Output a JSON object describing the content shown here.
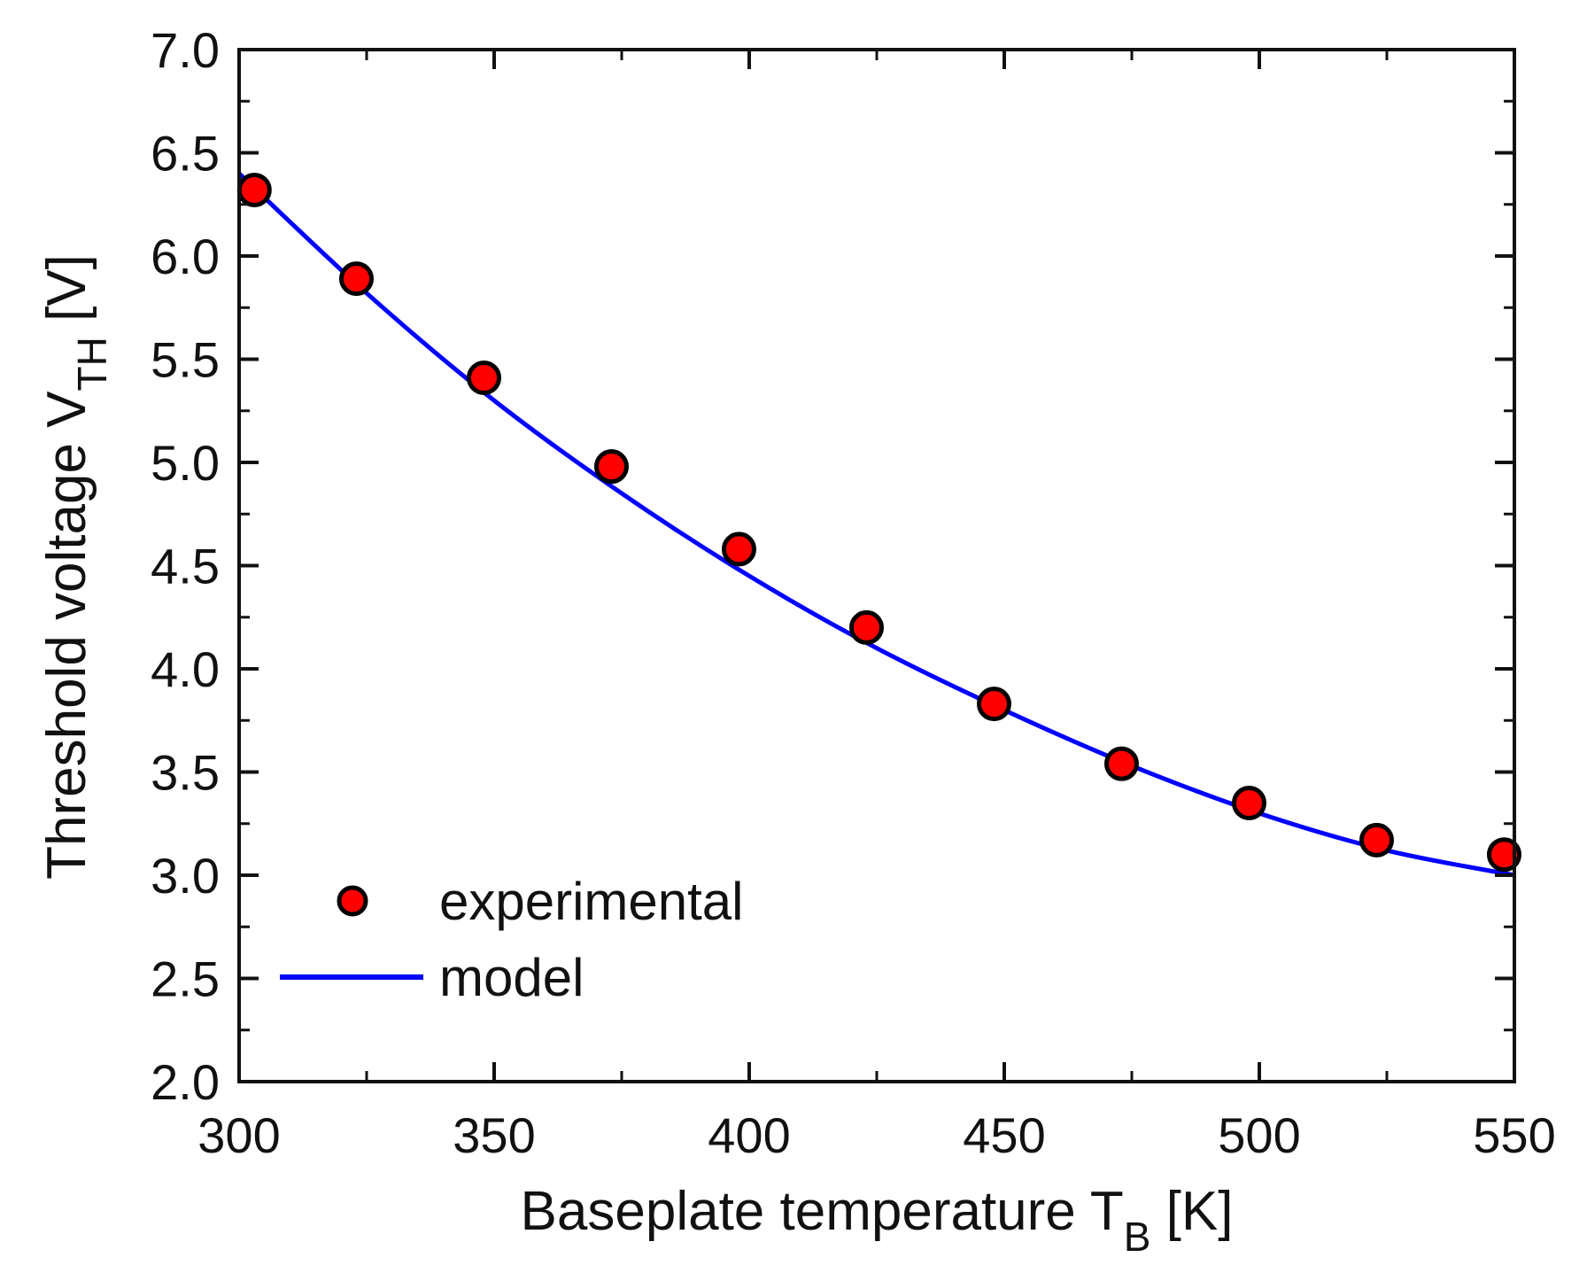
{
  "chart_data": {
    "type": "scatter",
    "xlabel": {
      "main": "Baseplate temperature T",
      "sub": "B",
      "unit": " [K]"
    },
    "ylabel": {
      "main": "Threshold voltage V",
      "sub": "TH",
      "unit": " [V]"
    },
    "xlim": [
      300,
      550
    ],
    "ylim": [
      2.0,
      7.0
    ],
    "xticks": [
      300,
      350,
      400,
      450,
      500,
      550
    ],
    "xtick_labels": [
      "300",
      "350",
      "400",
      "450",
      "500",
      "550"
    ],
    "yticks": [
      2.0,
      2.5,
      3.0,
      3.5,
      4.0,
      4.5,
      5.0,
      5.5,
      6.0,
      6.5,
      7.0
    ],
    "ytick_labels": [
      "2.0",
      "2.5",
      "3.0",
      "3.5",
      "4.0",
      "4.5",
      "5.0",
      "5.5",
      "6.0",
      "6.5",
      "7.0"
    ],
    "grid": false,
    "legend_position": "bottom-left",
    "series": [
      {
        "name": "experimental",
        "kind": "scatter",
        "color": "#ff0000",
        "edge_color": "#000000",
        "x": [
          303,
          323,
          348,
          373,
          398,
          423,
          448,
          473,
          498,
          523,
          548
        ],
        "y": [
          6.32,
          5.89,
          5.41,
          4.98,
          4.58,
          4.2,
          3.83,
          3.54,
          3.35,
          3.17,
          3.1
        ]
      },
      {
        "name": "model",
        "kind": "line",
        "color": "#0000ff",
        "x": [
          300,
          325,
          350,
          375,
          400,
          425,
          450,
          475,
          500,
          525,
          550
        ],
        "y": [
          6.4,
          5.82,
          5.3,
          4.85,
          4.45,
          4.1,
          3.8,
          3.53,
          3.3,
          3.12,
          3.0
        ]
      }
    ]
  }
}
